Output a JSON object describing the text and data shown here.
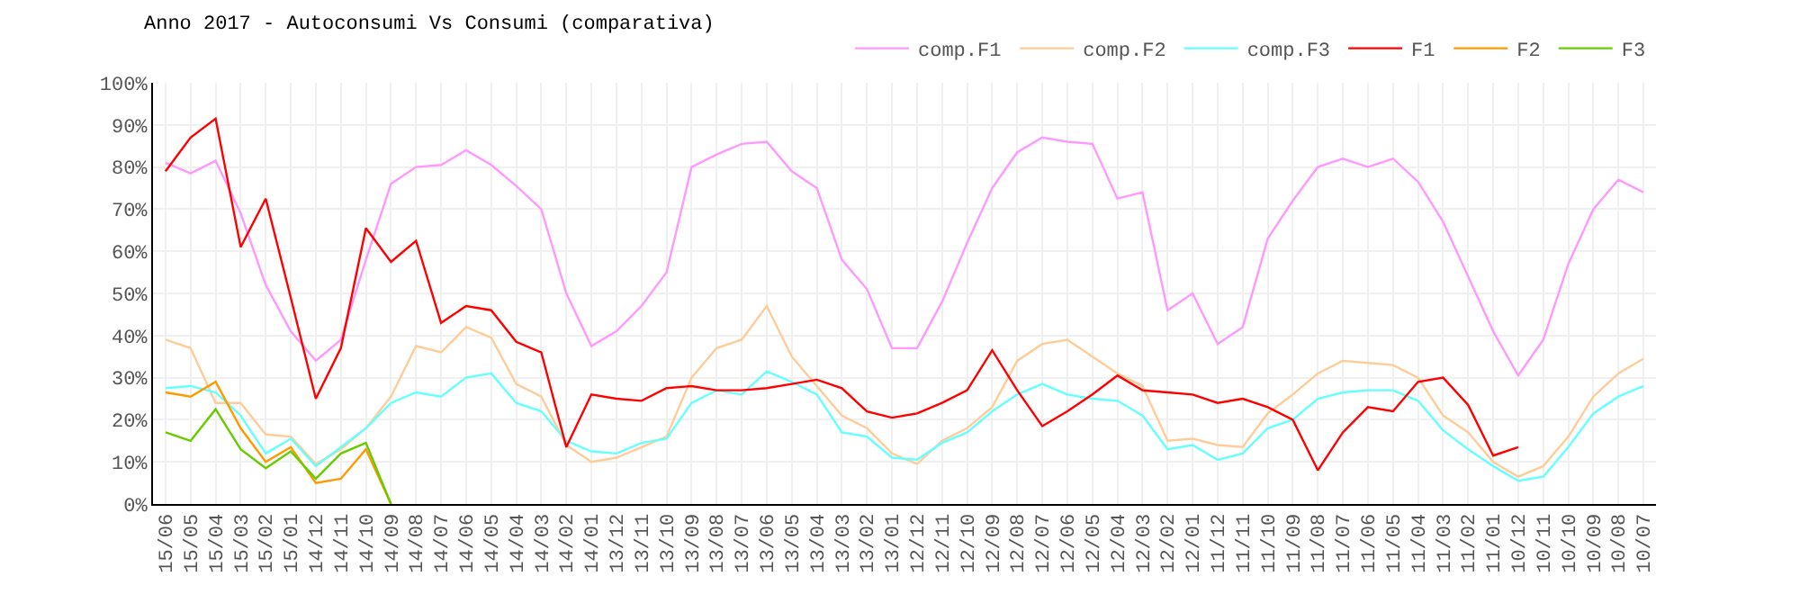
{
  "chart_data": {
    "type": "line",
    "title": "Anno 2017 - Autoconsumi Vs Consumi (comparativa)",
    "categories": [
      "15/06",
      "15/05",
      "15/04",
      "15/03",
      "15/02",
      "15/01",
      "14/12",
      "14/11",
      "14/10",
      "14/09",
      "14/08",
      "14/07",
      "14/06",
      "14/05",
      "14/04",
      "14/03",
      "14/02",
      "14/01",
      "13/12",
      "13/11",
      "13/10",
      "13/09",
      "13/08",
      "13/07",
      "13/06",
      "13/05",
      "13/04",
      "13/03",
      "13/02",
      "13/01",
      "12/12",
      "12/11",
      "12/10",
      "12/09",
      "12/08",
      "12/07",
      "12/06",
      "12/05",
      "12/04",
      "12/03",
      "12/02",
      "12/01",
      "11/12",
      "11/11",
      "11/10",
      "11/09",
      "11/08",
      "11/07",
      "11/06",
      "11/05",
      "11/04",
      "11/03",
      "11/02",
      "11/01",
      "10/12",
      "10/11",
      "10/10",
      "10/09",
      "10/08",
      "10/07"
    ],
    "series": [
      {
        "name": "comp.F1",
        "color": "#ff99ff",
        "values": [
          81,
          78.5,
          81.5,
          69,
          52,
          41,
          34,
          39,
          58,
          76,
          80,
          80.5,
          84,
          80.5,
          75.5,
          70,
          50,
          37.5,
          41,
          47,
          55,
          80,
          83,
          85.5,
          86,
          79,
          75,
          58,
          51,
          37,
          37,
          48,
          62,
          75,
          83.5,
          87,
          86,
          85.5,
          72.5,
          74,
          46,
          50,
          38,
          42,
          63,
          72,
          80,
          82,
          80,
          82,
          76.5,
          67,
          54,
          41,
          30.5,
          39,
          57,
          70,
          77,
          74
        ]
      },
      {
        "name": "comp.F2",
        "color": "#ffcc99",
        "values": [
          39,
          37,
          24,
          24,
          16.5,
          16,
          9.5,
          13,
          18,
          25.5,
          37.5,
          36,
          42,
          39.5,
          28.5,
          25.5,
          14,
          10,
          11,
          13.5,
          16,
          30,
          37,
          39,
          47,
          35,
          28,
          21,
          18,
          12,
          9.5,
          15,
          18,
          23,
          34,
          38,
          39,
          35,
          31,
          28,
          15,
          15.5,
          14,
          13.5,
          21.5,
          26,
          31,
          34,
          33.5,
          33,
          30,
          21,
          17,
          10,
          6.5,
          9,
          16,
          25.5,
          31,
          34.5
        ]
      },
      {
        "name": "comp.F3",
        "color": "#66ffff",
        "values": [
          27.5,
          28,
          26.5,
          21,
          12,
          15.5,
          9,
          13.5,
          18,
          24,
          26.5,
          25.5,
          30,
          31,
          24,
          22,
          15,
          12.5,
          12,
          14.5,
          15.5,
          24,
          27,
          26,
          31.5,
          29,
          26,
          17,
          16,
          11,
          10.5,
          14.5,
          17,
          22,
          26,
          28.5,
          26,
          25,
          24.5,
          21,
          13,
          14,
          10.5,
          12,
          18,
          20,
          25,
          26.5,
          27,
          27,
          24.5,
          17.5,
          13,
          9,
          5.5,
          6.5,
          13.5,
          21.5,
          25.5,
          28
        ]
      },
      {
        "name": "F1",
        "color": "#ff0000",
        "values": [
          79,
          87,
          91.5,
          61,
          72.5,
          49,
          25,
          37,
          65.5,
          57.5,
          62.5,
          43,
          47,
          46,
          38.5,
          36,
          13.5,
          26,
          25,
          24.5,
          27.5,
          28,
          27,
          27,
          27.5,
          28.5,
          29.5,
          27.5,
          22,
          20.5,
          21.5,
          24,
          27,
          36.5,
          27,
          18.5,
          22,
          26,
          30.5,
          27,
          26.5,
          26,
          24,
          25,
          23,
          20,
          8,
          17,
          23,
          22,
          29,
          30,
          23.5,
          11.5,
          13.5,
          null,
          null,
          null,
          null,
          null
        ]
      },
      {
        "name": "F2",
        "color": "#ff9900",
        "values": [
          26.5,
          25.5,
          29,
          18,
          10,
          13.5,
          5,
          6,
          13,
          0,
          null,
          null,
          null,
          null,
          null,
          null,
          null,
          null,
          null,
          null,
          null,
          null,
          null,
          null,
          null,
          null,
          null,
          null,
          null,
          null,
          null,
          null,
          null,
          null,
          null,
          null,
          null,
          null,
          null,
          null,
          null,
          null,
          null,
          null,
          null,
          null,
          null,
          null,
          null,
          null,
          null,
          null,
          null,
          null,
          null,
          null,
          null,
          null,
          null,
          null
        ]
      },
      {
        "name": "F3",
        "color": "#66cc00",
        "values": [
          17,
          15,
          22.5,
          13,
          8.5,
          12.5,
          6,
          12,
          14.5,
          0,
          null,
          null,
          null,
          null,
          null,
          null,
          null,
          null,
          null,
          null,
          null,
          null,
          null,
          null,
          null,
          null,
          null,
          null,
          null,
          null,
          null,
          null,
          null,
          null,
          null,
          null,
          null,
          null,
          null,
          null,
          null,
          null,
          null,
          null,
          null,
          null,
          null,
          null,
          null,
          null,
          null,
          null,
          null,
          null,
          null,
          null,
          null,
          null,
          null,
          null
        ]
      }
    ],
    "ylim": [
      0,
      100
    ],
    "yticks": [
      {
        "value": 0,
        "label": "0%"
      },
      {
        "value": 10,
        "label": "10%"
      },
      {
        "value": 20,
        "label": "20%"
      },
      {
        "value": 30,
        "label": "30%"
      },
      {
        "value": 40,
        "label": "40%"
      },
      {
        "value": 50,
        "label": "50%"
      },
      {
        "value": 60,
        "label": "60%"
      },
      {
        "value": 70,
        "label": "70%"
      },
      {
        "value": 80,
        "label": "80%"
      },
      {
        "value": 90,
        "label": "90%"
      },
      {
        "value": 100,
        "label": "100%"
      }
    ],
    "grid": true,
    "legend": "top right",
    "marker": "none",
    "line_style": "solid"
  }
}
